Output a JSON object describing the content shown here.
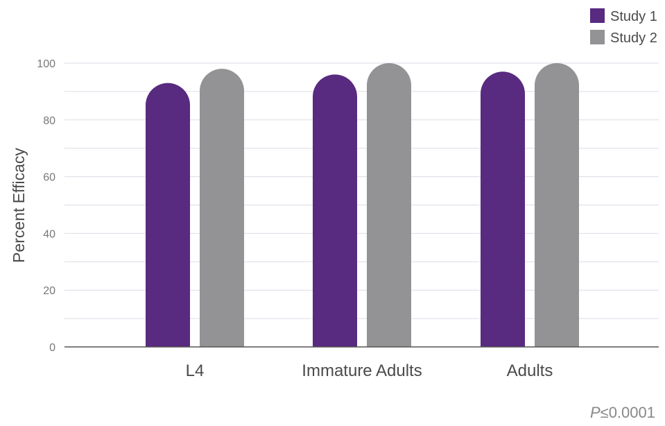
{
  "chart_data": {
    "type": "bar",
    "categories": [
      "L4",
      "Immature Adults",
      "Adults"
    ],
    "series": [
      {
        "name": "Study 1",
        "values": [
          93,
          96,
          97
        ],
        "color": "#582a80"
      },
      {
        "name": "Study 2",
        "values": [
          98,
          100,
          100
        ],
        "color": "#939396"
      }
    ],
    "ylabel": "Percent Efficacy",
    "xlabel": "",
    "ylim": [
      0,
      100
    ],
    "yticks": [
      "0",
      "20",
      "40",
      "60",
      "80",
      "100"
    ],
    "grid": true,
    "legend_position": "top-right"
  },
  "footnote": {
    "p_symbol": "P",
    "value": "≤0.0001"
  }
}
